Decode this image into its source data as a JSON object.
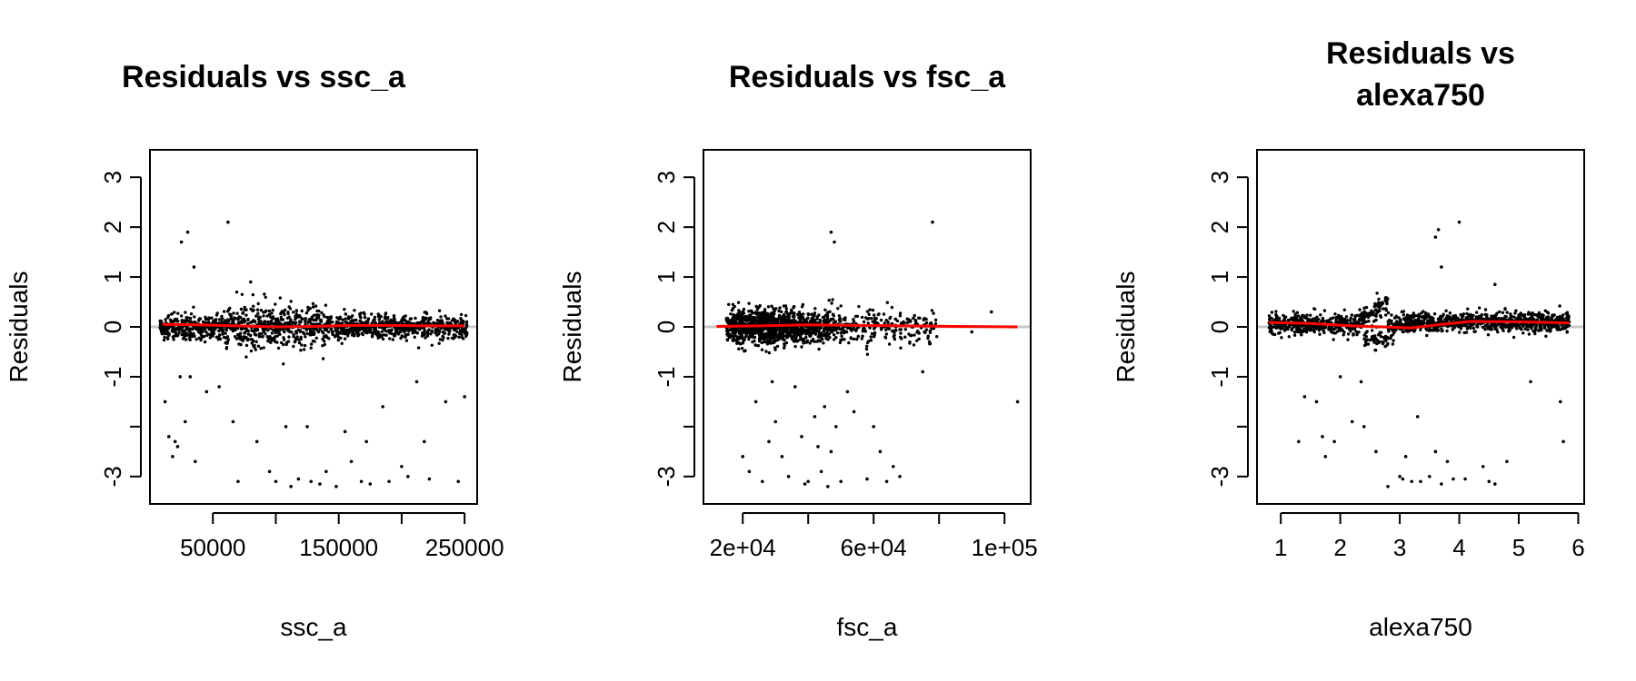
{
  "chart_data": [
    {
      "type": "scatter",
      "title": [
        "Residuals vs ssc_a"
      ],
      "xlabel": "ssc_a",
      "ylabel": "Residuals",
      "xlim": [
        0,
        260000
      ],
      "ylim": [
        -3.55,
        3.55
      ],
      "xticks": [
        50000,
        100000,
        150000,
        200000,
        250000
      ],
      "xtick_labels": [
        "50000",
        "",
        "150000",
        "",
        "250000"
      ],
      "yticks": [
        -3,
        -2,
        -1,
        0,
        1,
        2,
        3
      ],
      "ytick_labels": [
        "-3",
        "",
        "-1",
        "0",
        "1",
        "2",
        "3"
      ],
      "colors": {
        "points": "#000000",
        "smooth": "#ff0000",
        "zero_line": "#c8c8c8"
      },
      "smooth": {
        "x": [
          10000,
          40000,
          70000,
          100000,
          130000,
          160000,
          190000,
          220000,
          250000
        ],
        "y": [
          0.05,
          0.04,
          0.02,
          0.0,
          0.01,
          0.03,
          0.03,
          0.02,
          0.02
        ]
      },
      "cluster_x_range": [
        8000,
        252000
      ],
      "outliers": [
        {
          "x": 25000,
          "y": 1.7
        },
        {
          "x": 30000,
          "y": 1.9
        },
        {
          "x": 35000,
          "y": 1.2
        },
        {
          "x": 62000,
          "y": 2.1
        },
        {
          "x": 12000,
          "y": -1.5
        },
        {
          "x": 15000,
          "y": -2.2
        },
        {
          "x": 18000,
          "y": -2.6
        },
        {
          "x": 20000,
          "y": -2.3
        },
        {
          "x": 22000,
          "y": -2.4
        },
        {
          "x": 24000,
          "y": -1.0
        },
        {
          "x": 28000,
          "y": -1.9
        },
        {
          "x": 32000,
          "y": -1.0
        },
        {
          "x": 36000,
          "y": -2.7
        },
        {
          "x": 45000,
          "y": -1.3
        },
        {
          "x": 55000,
          "y": -1.2
        },
        {
          "x": 66000,
          "y": -1.9
        },
        {
          "x": 70000,
          "y": -3.1
        },
        {
          "x": 85000,
          "y": -2.3
        },
        {
          "x": 95000,
          "y": -2.9
        },
        {
          "x": 100000,
          "y": -3.1
        },
        {
          "x": 108000,
          "y": -2.0
        },
        {
          "x": 112000,
          "y": -3.2
        },
        {
          "x": 118000,
          "y": -3.05
        },
        {
          "x": 125000,
          "y": -2.0
        },
        {
          "x": 128000,
          "y": -3.1
        },
        {
          "x": 135000,
          "y": -3.15
        },
        {
          "x": 140000,
          "y": -2.9
        },
        {
          "x": 148000,
          "y": -3.2
        },
        {
          "x": 155000,
          "y": -2.1
        },
        {
          "x": 160000,
          "y": -2.7
        },
        {
          "x": 168000,
          "y": -3.1
        },
        {
          "x": 172000,
          "y": -2.3
        },
        {
          "x": 185000,
          "y": -1.6
        },
        {
          "x": 200000,
          "y": -2.8
        },
        {
          "x": 205000,
          "y": -3.0
        },
        {
          "x": 212000,
          "y": -1.1
        },
        {
          "x": 218000,
          "y": -2.3
        },
        {
          "x": 222000,
          "y": -3.05
        },
        {
          "x": 235000,
          "y": -1.5
        },
        {
          "x": 245000,
          "y": -3.1
        },
        {
          "x": 250000,
          "y": -1.4
        },
        {
          "x": 190000,
          "y": -3.1
        },
        {
          "x": 175000,
          "y": -3.15
        },
        {
          "x": 80000,
          "y": 0.9
        }
      ]
    },
    {
      "type": "scatter",
      "title": [
        "Residuals vs fsc_a"
      ],
      "xlabel": "fsc_a",
      "ylabel": "Residuals",
      "xlim": [
        8000,
        108000
      ],
      "ylim": [
        -3.55,
        3.55
      ],
      "xticks": [
        20000,
        40000,
        60000,
        80000,
        100000
      ],
      "xtick_labels": [
        "2e+04",
        "",
        "6e+04",
        "",
        "1e+05"
      ],
      "yticks": [
        -3,
        -2,
        -1,
        0,
        1,
        2,
        3
      ],
      "ytick_labels": [
        "-3",
        "",
        "-1",
        "0",
        "1",
        "2",
        "3"
      ],
      "colors": {
        "points": "#000000",
        "smooth": "#ff0000",
        "zero_line": "#c8c8c8"
      },
      "smooth": {
        "x": [
          12000,
          25000,
          40000,
          55000,
          70000,
          85000,
          104000
        ],
        "y": [
          0.01,
          0.02,
          0.04,
          0.03,
          0.02,
          0.01,
          0.0
        ]
      },
      "cluster_x_range": [
        15000,
        80000
      ],
      "outliers": [
        {
          "x": 47000,
          "y": 1.9
        },
        {
          "x": 48000,
          "y": 1.7
        },
        {
          "x": 78000,
          "y": 2.1
        },
        {
          "x": 104000,
          "y": -1.5
        },
        {
          "x": 20000,
          "y": -2.6
        },
        {
          "x": 22000,
          "y": -2.9
        },
        {
          "x": 24000,
          "y": -1.5
        },
        {
          "x": 26000,
          "y": -3.1
        },
        {
          "x": 28000,
          "y": -2.3
        },
        {
          "x": 30000,
          "y": -1.9
        },
        {
          "x": 32000,
          "y": -2.6
        },
        {
          "x": 34000,
          "y": -3.0
        },
        {
          "x": 36000,
          "y": -1.2
        },
        {
          "x": 38000,
          "y": -2.2
        },
        {
          "x": 40000,
          "y": -3.1
        },
        {
          "x": 42000,
          "y": -1.8
        },
        {
          "x": 44000,
          "y": -2.9
        },
        {
          "x": 45000,
          "y": -1.6
        },
        {
          "x": 46000,
          "y": -3.2
        },
        {
          "x": 47000,
          "y": -2.5
        },
        {
          "x": 48500,
          "y": -2.0
        },
        {
          "x": 50000,
          "y": -3.1
        },
        {
          "x": 52000,
          "y": -1.3
        },
        {
          "x": 58000,
          "y": -3.05
        },
        {
          "x": 60000,
          "y": -2.0
        },
        {
          "x": 62000,
          "y": -2.5
        },
        {
          "x": 64000,
          "y": -3.1
        },
        {
          "x": 66000,
          "y": -2.8
        },
        {
          "x": 68000,
          "y": -3.0
        },
        {
          "x": 75000,
          "y": -0.9
        },
        {
          "x": 90000,
          "y": -0.1
        },
        {
          "x": 96000,
          "y": 0.3
        },
        {
          "x": 29000,
          "y": -1.1
        },
        {
          "x": 39000,
          "y": -3.15
        },
        {
          "x": 43000,
          "y": -2.4
        },
        {
          "x": 54000,
          "y": -1.7
        }
      ]
    },
    {
      "type": "scatter",
      "title": [
        "Residuals vs",
        "alexa750"
      ],
      "xlabel": "alexa750",
      "ylabel": "Residuals",
      "xlim": [
        0.6,
        6.1
      ],
      "ylim": [
        -3.55,
        3.55
      ],
      "xticks": [
        1,
        2,
        3,
        4,
        5,
        6
      ],
      "xtick_labels": [
        "1",
        "2",
        "3",
        "4",
        "5",
        "6"
      ],
      "yticks": [
        -3,
        -2,
        -1,
        0,
        1,
        2,
        3
      ],
      "ytick_labels": [
        "-3",
        "",
        "-1",
        "0",
        "1",
        "2",
        "3"
      ],
      "colors": {
        "points": "#000000",
        "smooth": "#ff0000",
        "zero_line": "#c8c8c8"
      },
      "smooth": {
        "x": [
          0.8,
          1.5,
          2.2,
          2.7,
          3.2,
          3.7,
          4.2,
          5.0,
          5.85
        ],
        "y": [
          0.09,
          0.07,
          0.02,
          0.0,
          -0.02,
          0.05,
          0.11,
          0.1,
          0.08
        ]
      },
      "cluster_x_range": [
        0.8,
        5.85
      ],
      "outliers": [
        {
          "x": 3.6,
          "y": 1.8
        },
        {
          "x": 3.65,
          "y": 1.95
        },
        {
          "x": 4.0,
          "y": 2.1
        },
        {
          "x": 3.7,
          "y": 1.2
        },
        {
          "x": 1.6,
          "y": -1.5
        },
        {
          "x": 1.7,
          "y": -2.2
        },
        {
          "x": 1.75,
          "y": -2.6
        },
        {
          "x": 1.9,
          "y": -2.3
        },
        {
          "x": 2.0,
          "y": -1.0
        },
        {
          "x": 2.2,
          "y": -1.9
        },
        {
          "x": 2.4,
          "y": -2.0
        },
        {
          "x": 2.6,
          "y": -2.5
        },
        {
          "x": 2.8,
          "y": -3.2
        },
        {
          "x": 3.0,
          "y": -3.0
        },
        {
          "x": 3.1,
          "y": -2.6
        },
        {
          "x": 3.2,
          "y": -3.1
        },
        {
          "x": 3.3,
          "y": -1.8
        },
        {
          "x": 3.35,
          "y": -3.1
        },
        {
          "x": 3.5,
          "y": -3.0
        },
        {
          "x": 3.6,
          "y": -2.5
        },
        {
          "x": 3.7,
          "y": -3.15
        },
        {
          "x": 3.8,
          "y": -2.7
        },
        {
          "x": 3.9,
          "y": -3.05
        },
        {
          "x": 4.1,
          "y": -3.05
        },
        {
          "x": 4.4,
          "y": -2.8
        },
        {
          "x": 4.5,
          "y": -3.1
        },
        {
          "x": 4.6,
          "y": -3.15
        },
        {
          "x": 4.8,
          "y": -2.7
        },
        {
          "x": 5.2,
          "y": -1.1
        },
        {
          "x": 5.7,
          "y": -1.5
        },
        {
          "x": 5.75,
          "y": -2.3
        },
        {
          "x": 1.3,
          "y": -2.3
        },
        {
          "x": 1.4,
          "y": -1.4
        },
        {
          "x": 2.35,
          "y": -1.1
        },
        {
          "x": 3.05,
          "y": -3.05
        },
        {
          "x": 4.6,
          "y": 0.85
        }
      ]
    }
  ]
}
